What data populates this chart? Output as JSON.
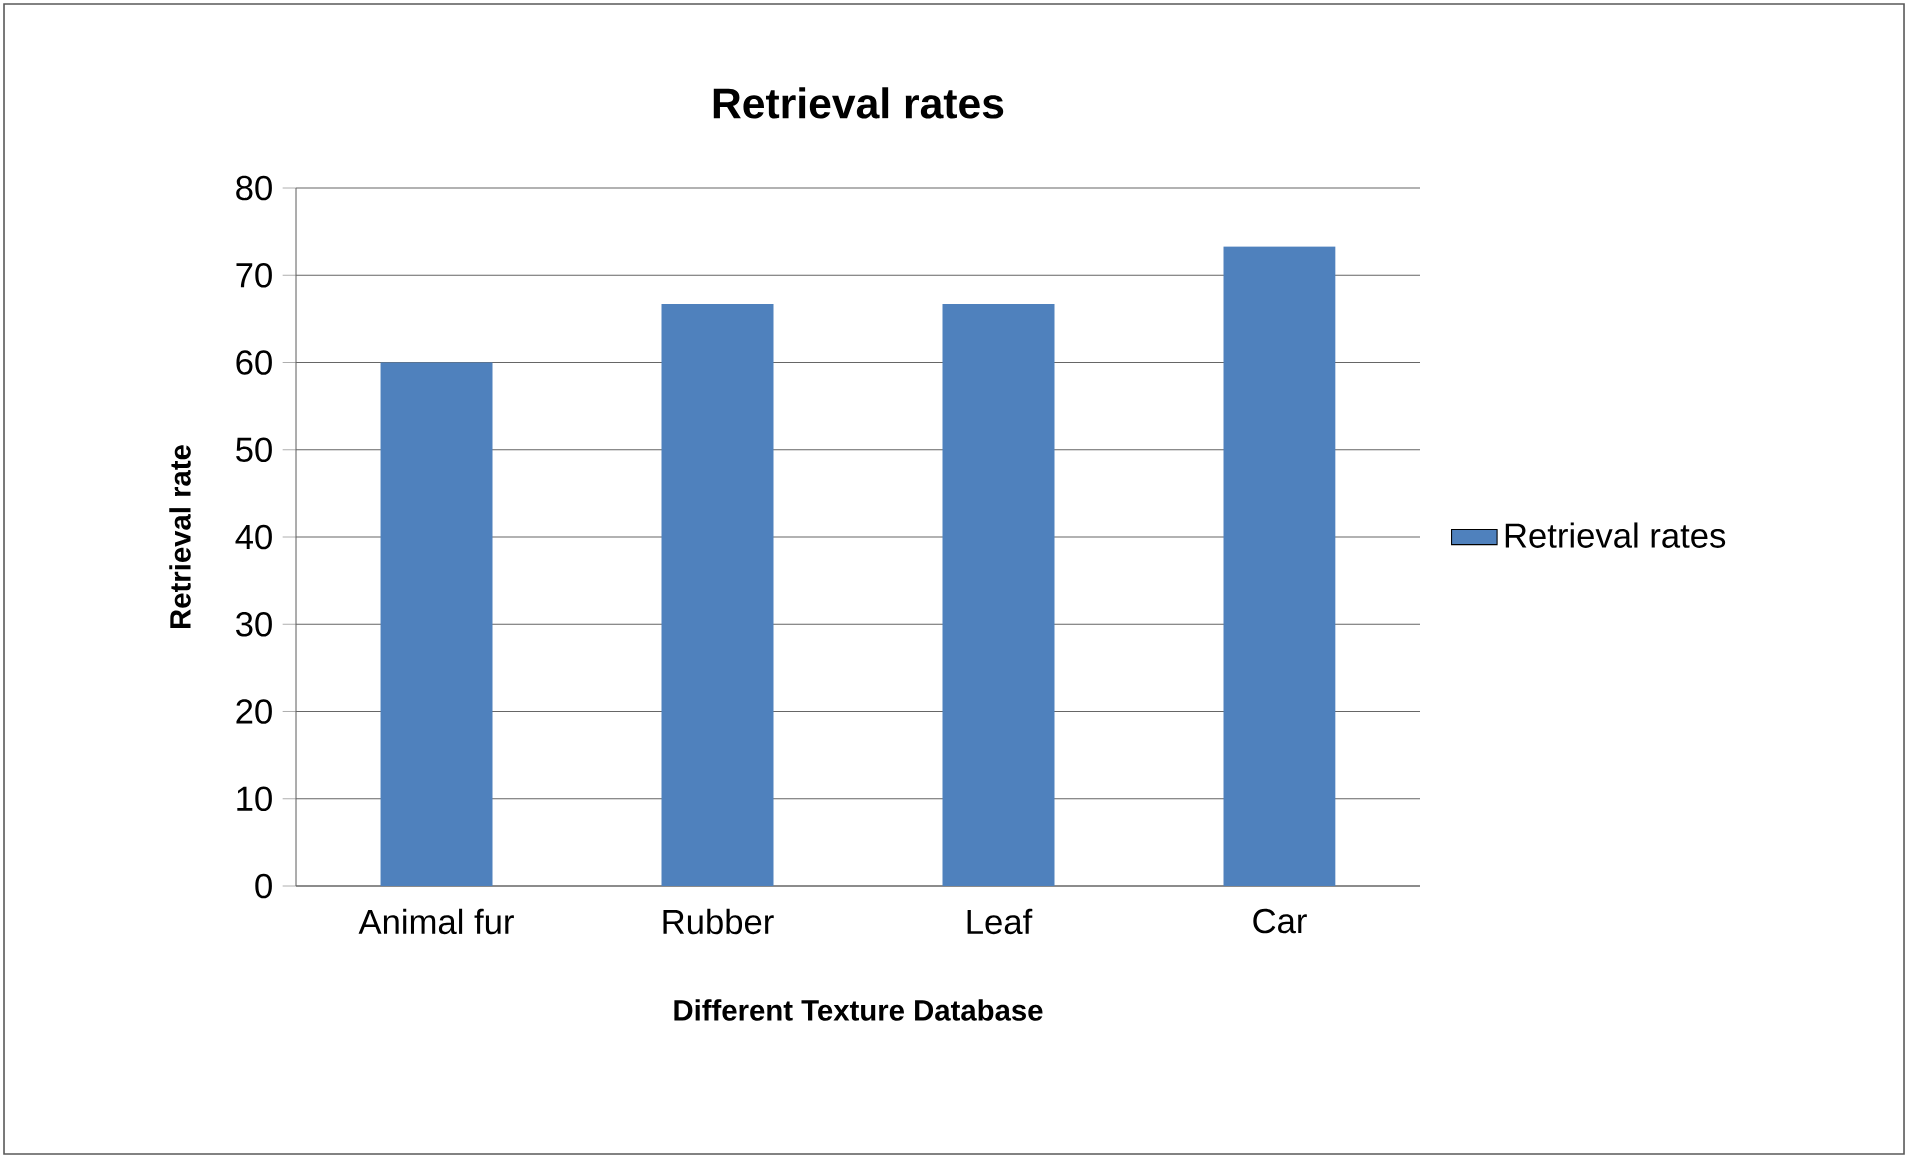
{
  "chart_data": {
    "type": "bar",
    "title": "Retrieval rates",
    "xlabel": "Different Texture Database",
    "ylabel": "Retrieval rate",
    "categories": [
      "Animal fur",
      "Rubber",
      "Leaf",
      "Car"
    ],
    "series": [
      {
        "name": "Retrieval rates",
        "color": "#4f81bd",
        "values": [
          60,
          66.7,
          66.7,
          73.3
        ]
      }
    ],
    "ylim": [
      0,
      80
    ],
    "yticks": [
      0,
      10,
      20,
      30,
      40,
      50,
      60,
      70,
      80
    ],
    "grid": "y",
    "legend": "right"
  }
}
